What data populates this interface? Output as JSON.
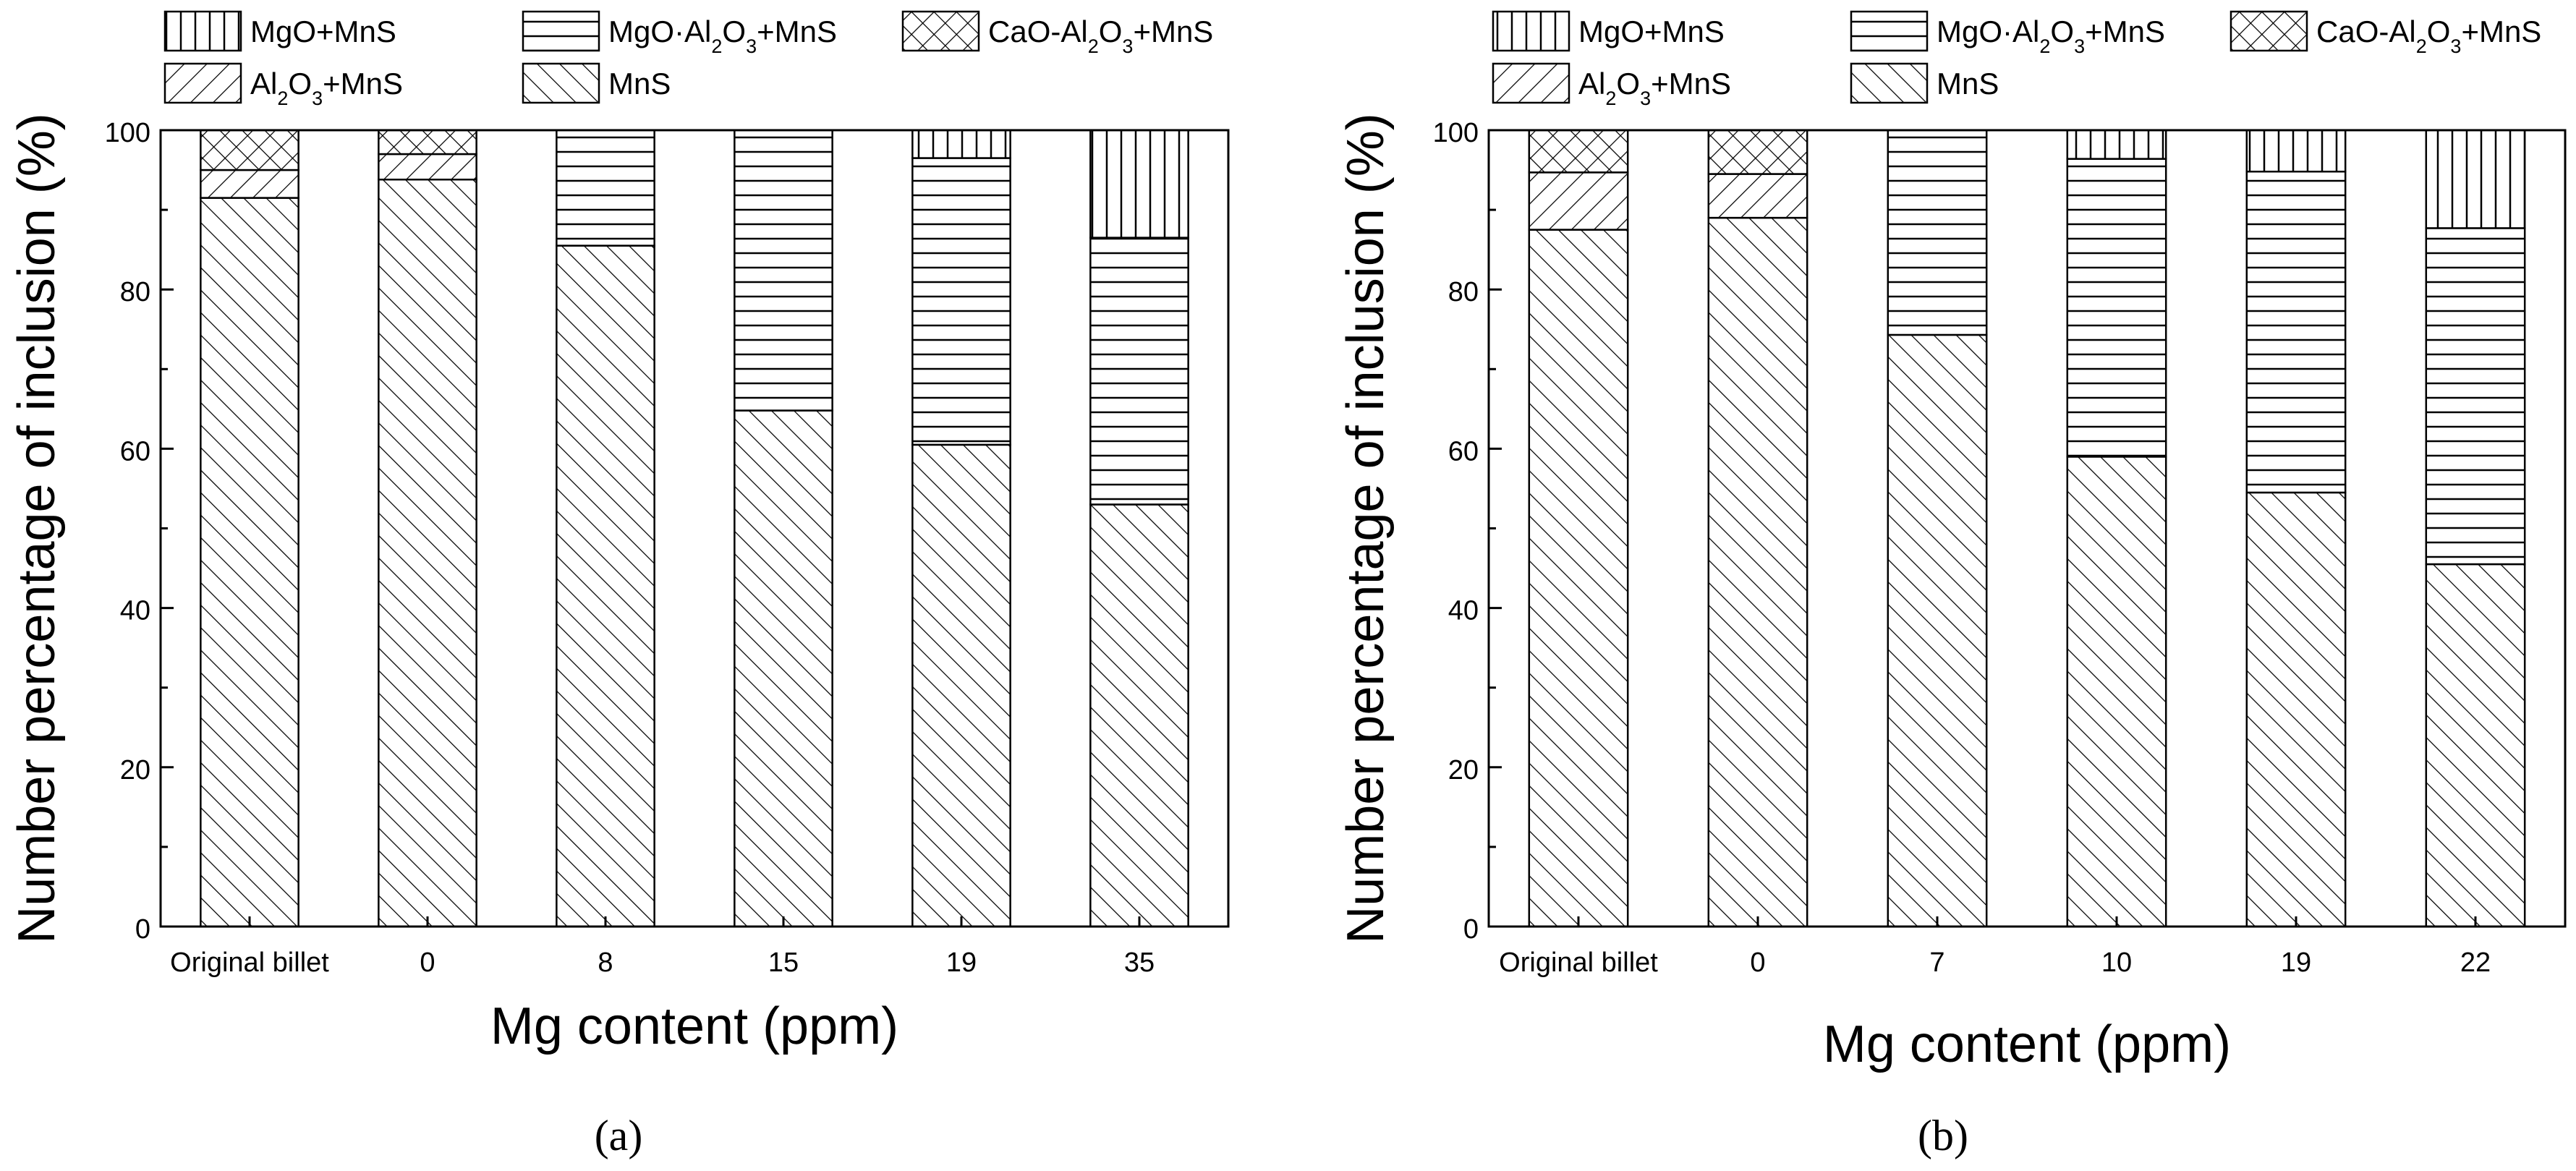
{
  "chart_data": [
    {
      "type": "bar",
      "stacked": true,
      "panel_label": "(a)",
      "xlabel": "Mg content (ppm)",
      "ylabel": "Number percentage of inclusion (%)",
      "ylim": [
        0,
        100
      ],
      "yticks": [
        0,
        20,
        40,
        60,
        80,
        100
      ],
      "categories": [
        "Original billet",
        "0",
        "8",
        "15",
        "19",
        "35"
      ],
      "legend_position": "top",
      "series": [
        {
          "name": "MnS",
          "pattern": "diagonal-hatch",
          "values": [
            91.5,
            93.8,
            85.5,
            64.8,
            60.5,
            53
          ]
        },
        {
          "name": "Al2O3+MnS",
          "pattern": "backslash-hatch",
          "values": [
            3.5,
            3.2,
            0,
            0,
            0,
            0
          ]
        },
        {
          "name": "MgO·Al2O3+MnS",
          "pattern": "horizontal-lines",
          "values": [
            0,
            0,
            14.5,
            35.2,
            36,
            33.5
          ]
        },
        {
          "name": "CaO-Al2O3+MnS",
          "pattern": "crosshatch",
          "values": [
            5,
            3,
            0,
            0,
            0,
            0
          ]
        },
        {
          "name": "MgO+MnS",
          "pattern": "vertical-lines",
          "values": [
            0,
            0,
            0,
            0,
            3.5,
            13.5
          ]
        }
      ]
    },
    {
      "type": "bar",
      "stacked": true,
      "panel_label": "(b)",
      "xlabel": "Mg content (ppm)",
      "ylabel": "Number percentage of inclusion (%)",
      "ylim": [
        0,
        100
      ],
      "yticks": [
        0,
        20,
        40,
        60,
        80,
        100
      ],
      "categories": [
        "Original billet",
        "0",
        "7",
        "10",
        "19",
        "22"
      ],
      "legend_position": "top",
      "series": [
        {
          "name": "MnS",
          "pattern": "diagonal-hatch",
          "values": [
            87.5,
            89,
            74.3,
            59,
            54.5,
            45.5
          ]
        },
        {
          "name": "Al2O3+MnS",
          "pattern": "backslash-hatch",
          "values": [
            7.2,
            5.5,
            0,
            0,
            0,
            0
          ]
        },
        {
          "name": "MgO·Al2O3+MnS",
          "pattern": "horizontal-lines",
          "values": [
            0,
            0,
            25.7,
            37.4,
            40.3,
            42.2
          ]
        },
        {
          "name": "CaO-Al2O3+MnS",
          "pattern": "crosshatch",
          "values": [
            5.3,
            5.5,
            0,
            0,
            0,
            0
          ]
        },
        {
          "name": "MgO+MnS",
          "pattern": "vertical-lines",
          "values": [
            0,
            0,
            0,
            3.6,
            5.2,
            12.3
          ]
        }
      ]
    }
  ]
}
